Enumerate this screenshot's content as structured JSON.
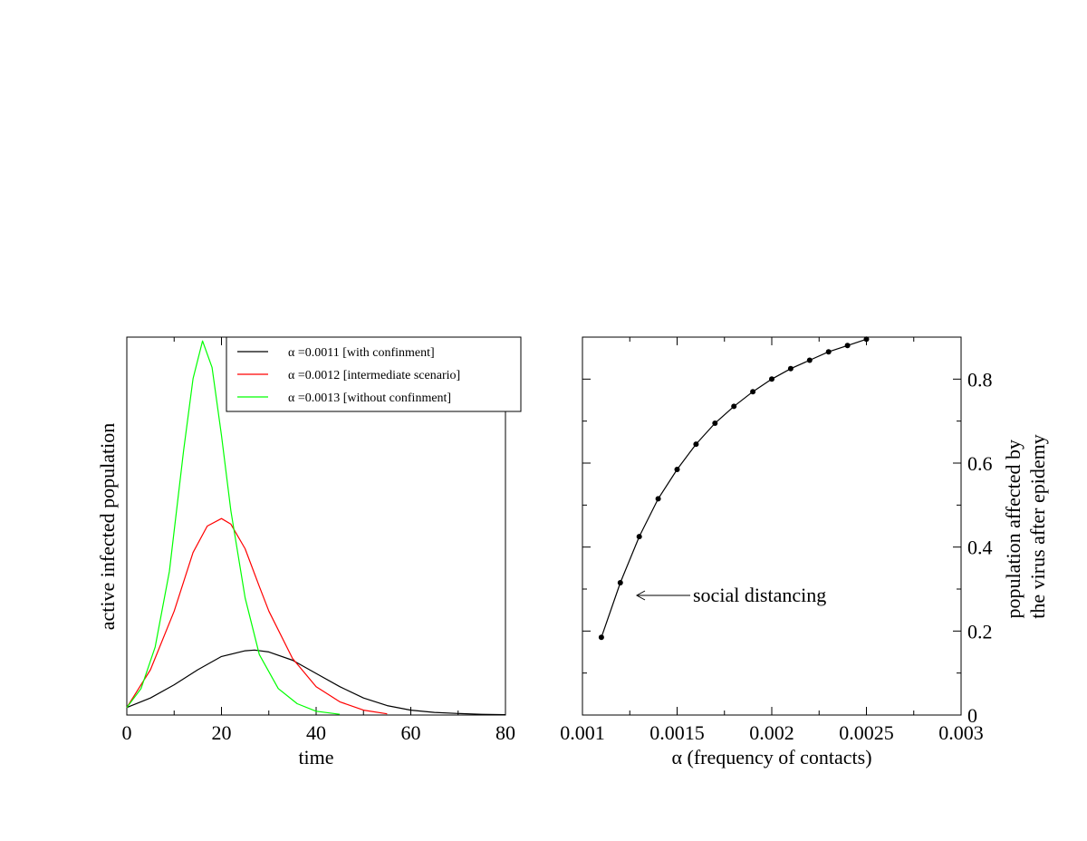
{
  "chart_data": [
    {
      "type": "line",
      "title": "",
      "xlabel": "time",
      "ylabel": "active infected population",
      "xlim": [
        0,
        80
      ],
      "ylim": [
        0,
        1
      ],
      "x_ticks": [
        0,
        20,
        40,
        60,
        80
      ],
      "x_tick_labels": [
        "0",
        "20",
        "40",
        "60",
        "80"
      ],
      "legend_position": "top-right",
      "grid": false,
      "series": [
        {
          "name": "α =0.0011 [with confinment]",
          "color": "#000000",
          "x": [
            0,
            5,
            10,
            15,
            20,
            25,
            27,
            30,
            35,
            40,
            45,
            50,
            55,
            60,
            65,
            70,
            75,
            80
          ],
          "y": [
            0.02,
            0.045,
            0.08,
            0.12,
            0.155,
            0.17,
            0.172,
            0.167,
            0.145,
            0.11,
            0.075,
            0.045,
            0.025,
            0.013,
            0.007,
            0.004,
            0.002,
            0.001
          ]
        },
        {
          "name": "α =0.0012 [intermediate scenario]",
          "color": "#ff0000",
          "x": [
            0,
            5,
            10,
            14,
            17,
            20,
            22,
            25,
            28,
            30,
            35,
            40,
            45,
            50,
            55
          ],
          "y": [
            0.02,
            0.12,
            0.275,
            0.43,
            0.5,
            0.52,
            0.505,
            0.44,
            0.34,
            0.275,
            0.15,
            0.075,
            0.035,
            0.013,
            0.003
          ]
        },
        {
          "name": "α =0.0013 [without confinment]",
          "color": "#00ff00",
          "x": [
            0,
            3,
            6,
            9,
            12,
            14,
            16,
            18,
            20,
            22,
            25,
            28,
            32,
            36,
            40,
            45
          ],
          "y": [
            0.02,
            0.07,
            0.18,
            0.38,
            0.7,
            0.89,
            0.99,
            0.92,
            0.74,
            0.54,
            0.31,
            0.16,
            0.07,
            0.03,
            0.01,
            0.002
          ]
        }
      ]
    },
    {
      "type": "scatter",
      "title": "",
      "xlabel": "α (frequency of contacts)",
      "ylabel": "population affected by the virus after epidemy",
      "xlim": [
        0.001,
        0.003
      ],
      "ylim": [
        0,
        0.9
      ],
      "x_ticks": [
        0.001,
        0.0015,
        0.002,
        0.0025,
        0.003
      ],
      "x_tick_labels": [
        "0.001",
        "0.0015",
        "0.002",
        "0.0025",
        "0.003"
      ],
      "y_ticks": [
        0,
        0.2,
        0.4,
        0.6,
        0.8
      ],
      "y_tick_labels": [
        "0",
        "0.2",
        "0.4",
        "0.6",
        "0.8"
      ],
      "y_axis_side": "right",
      "grid": false,
      "annotation": "social distancing",
      "series": [
        {
          "x": [
            0.0011,
            0.0012,
            0.0013,
            0.0014,
            0.0015,
            0.0016,
            0.0017,
            0.0018,
            0.0019,
            0.002,
            0.0021,
            0.0022,
            0.0023,
            0.0024,
            0.0025
          ],
          "y": [
            0.185,
            0.315,
            0.425,
            0.515,
            0.585,
            0.645,
            0.695,
            0.735,
            0.77,
            0.8,
            0.825,
            0.845,
            0.865,
            0.88,
            0.895
          ]
        }
      ]
    }
  ]
}
